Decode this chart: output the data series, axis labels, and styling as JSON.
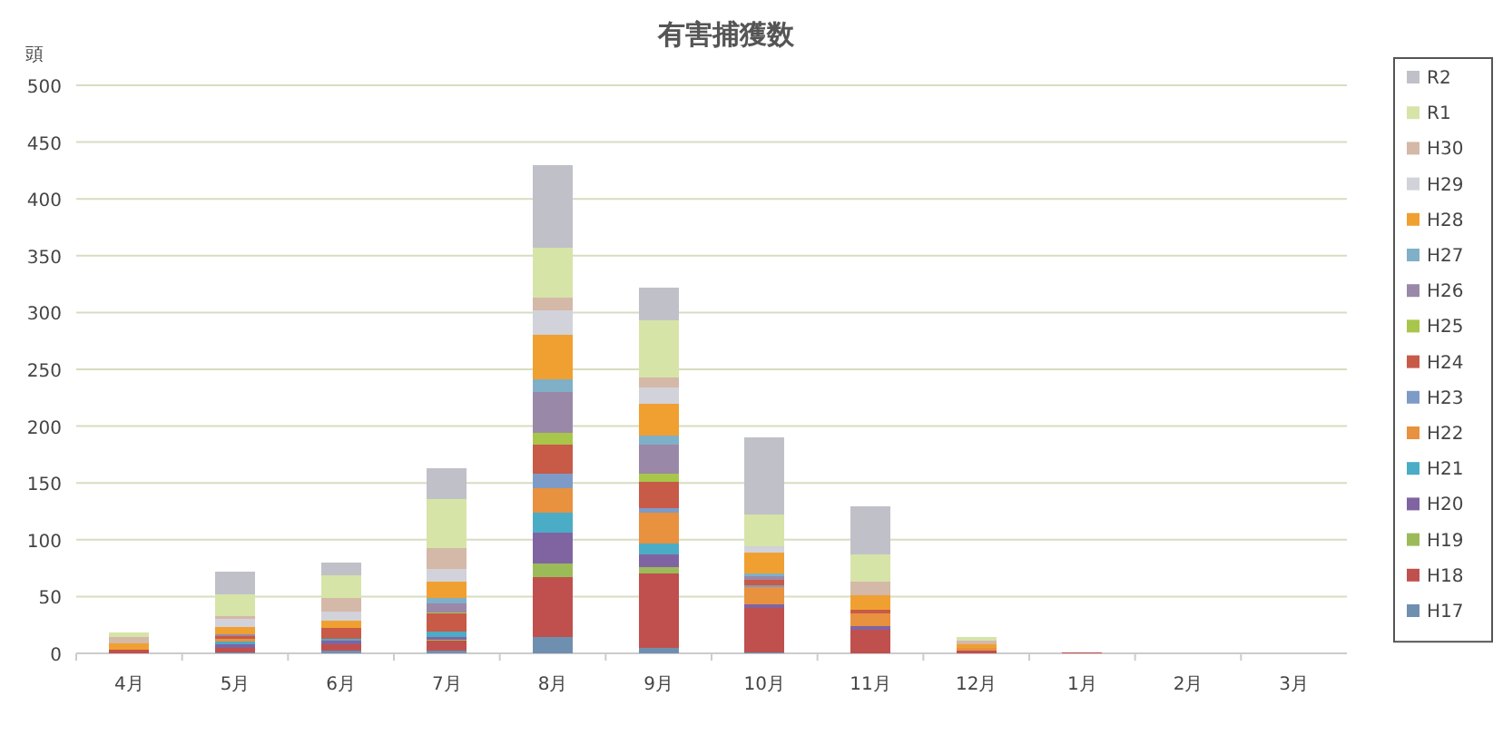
{
  "chart_data": {
    "type": "bar",
    "title": "有害捕獲数",
    "ylabel": "頭",
    "stacked": true,
    "grid": "y",
    "legend": "right",
    "categories": [
      "4月",
      "5月",
      "6月",
      "7月",
      "8月",
      "9月",
      "10月",
      "11月",
      "12月",
      "1月",
      "2月",
      "3月"
    ],
    "ylim": [
      0,
      500
    ],
    "yticks": [
      0,
      50,
      100,
      150,
      200,
      250,
      300,
      350,
      400,
      450,
      500
    ],
    "series": [
      {
        "name": "H17",
        "color": "#6f8fb0",
        "values": [
          0,
          1,
          2,
          2,
          14,
          5,
          1,
          0,
          0,
          0,
          0,
          0
        ]
      },
      {
        "name": "H18",
        "color": "#c0504d",
        "values": [
          3,
          4,
          6,
          9,
          53,
          65,
          39,
          21,
          2,
          1,
          0,
          0
        ]
      },
      {
        "name": "H19",
        "color": "#9bbb59",
        "values": [
          0,
          0,
          0,
          1,
          12,
          6,
          0,
          0,
          0,
          0,
          0,
          0
        ]
      },
      {
        "name": "H20",
        "color": "#8064a2",
        "values": [
          0,
          3,
          3,
          2,
          27,
          11,
          3,
          3,
          0,
          0,
          0,
          0
        ]
      },
      {
        "name": "H21",
        "color": "#4bacc6",
        "values": [
          0,
          2,
          2,
          5,
          18,
          10,
          0,
          0,
          0,
          0,
          0,
          0
        ]
      },
      {
        "name": "H22",
        "color": "#e8913e",
        "values": [
          0,
          3,
          0,
          0,
          21,
          27,
          15,
          11,
          3,
          0,
          0,
          0
        ]
      },
      {
        "name": "H23",
        "color": "#7e9bc8",
        "values": [
          0,
          0,
          0,
          0,
          13,
          4,
          2,
          0,
          0,
          0,
          0,
          0
        ]
      },
      {
        "name": "H24",
        "color": "#c85a48",
        "values": [
          0,
          2,
          9,
          16,
          26,
          23,
          5,
          3,
          0,
          0,
          0,
          0
        ]
      },
      {
        "name": "H25",
        "color": "#a8c64a",
        "values": [
          0,
          0,
          0,
          1,
          10,
          7,
          0,
          0,
          0,
          0,
          0,
          0
        ]
      },
      {
        "name": "H26",
        "color": "#9a88a8",
        "values": [
          0,
          2,
          0,
          8,
          36,
          26,
          3,
          0,
          0,
          0,
          0,
          0
        ]
      },
      {
        "name": "H27",
        "color": "#7fb0c8",
        "values": [
          0,
          0,
          0,
          5,
          11,
          8,
          2,
          0,
          0,
          0,
          0,
          0
        ]
      },
      {
        "name": "H28",
        "color": "#f0a030",
        "values": [
          6,
          6,
          7,
          14,
          39,
          28,
          19,
          13,
          3,
          0,
          0,
          0
        ]
      },
      {
        "name": "H29",
        "color": "#d2d2da",
        "values": [
          0,
          7,
          8,
          11,
          22,
          14,
          5,
          0,
          0,
          0,
          0,
          0
        ]
      },
      {
        "name": "H30",
        "color": "#d4b8a8",
        "values": [
          5,
          3,
          12,
          19,
          11,
          9,
          0,
          12,
          3,
          0,
          0,
          0
        ]
      },
      {
        "name": "R1",
        "color": "#d6e4a8",
        "values": [
          4,
          19,
          20,
          43,
          44,
          50,
          28,
          24,
          3,
          0,
          0,
          0
        ]
      },
      {
        "name": "R2",
        "color": "#c0c0c8",
        "values": [
          0,
          20,
          11,
          27,
          73,
          29,
          68,
          42,
          0,
          0,
          0,
          0
        ]
      }
    ]
  }
}
